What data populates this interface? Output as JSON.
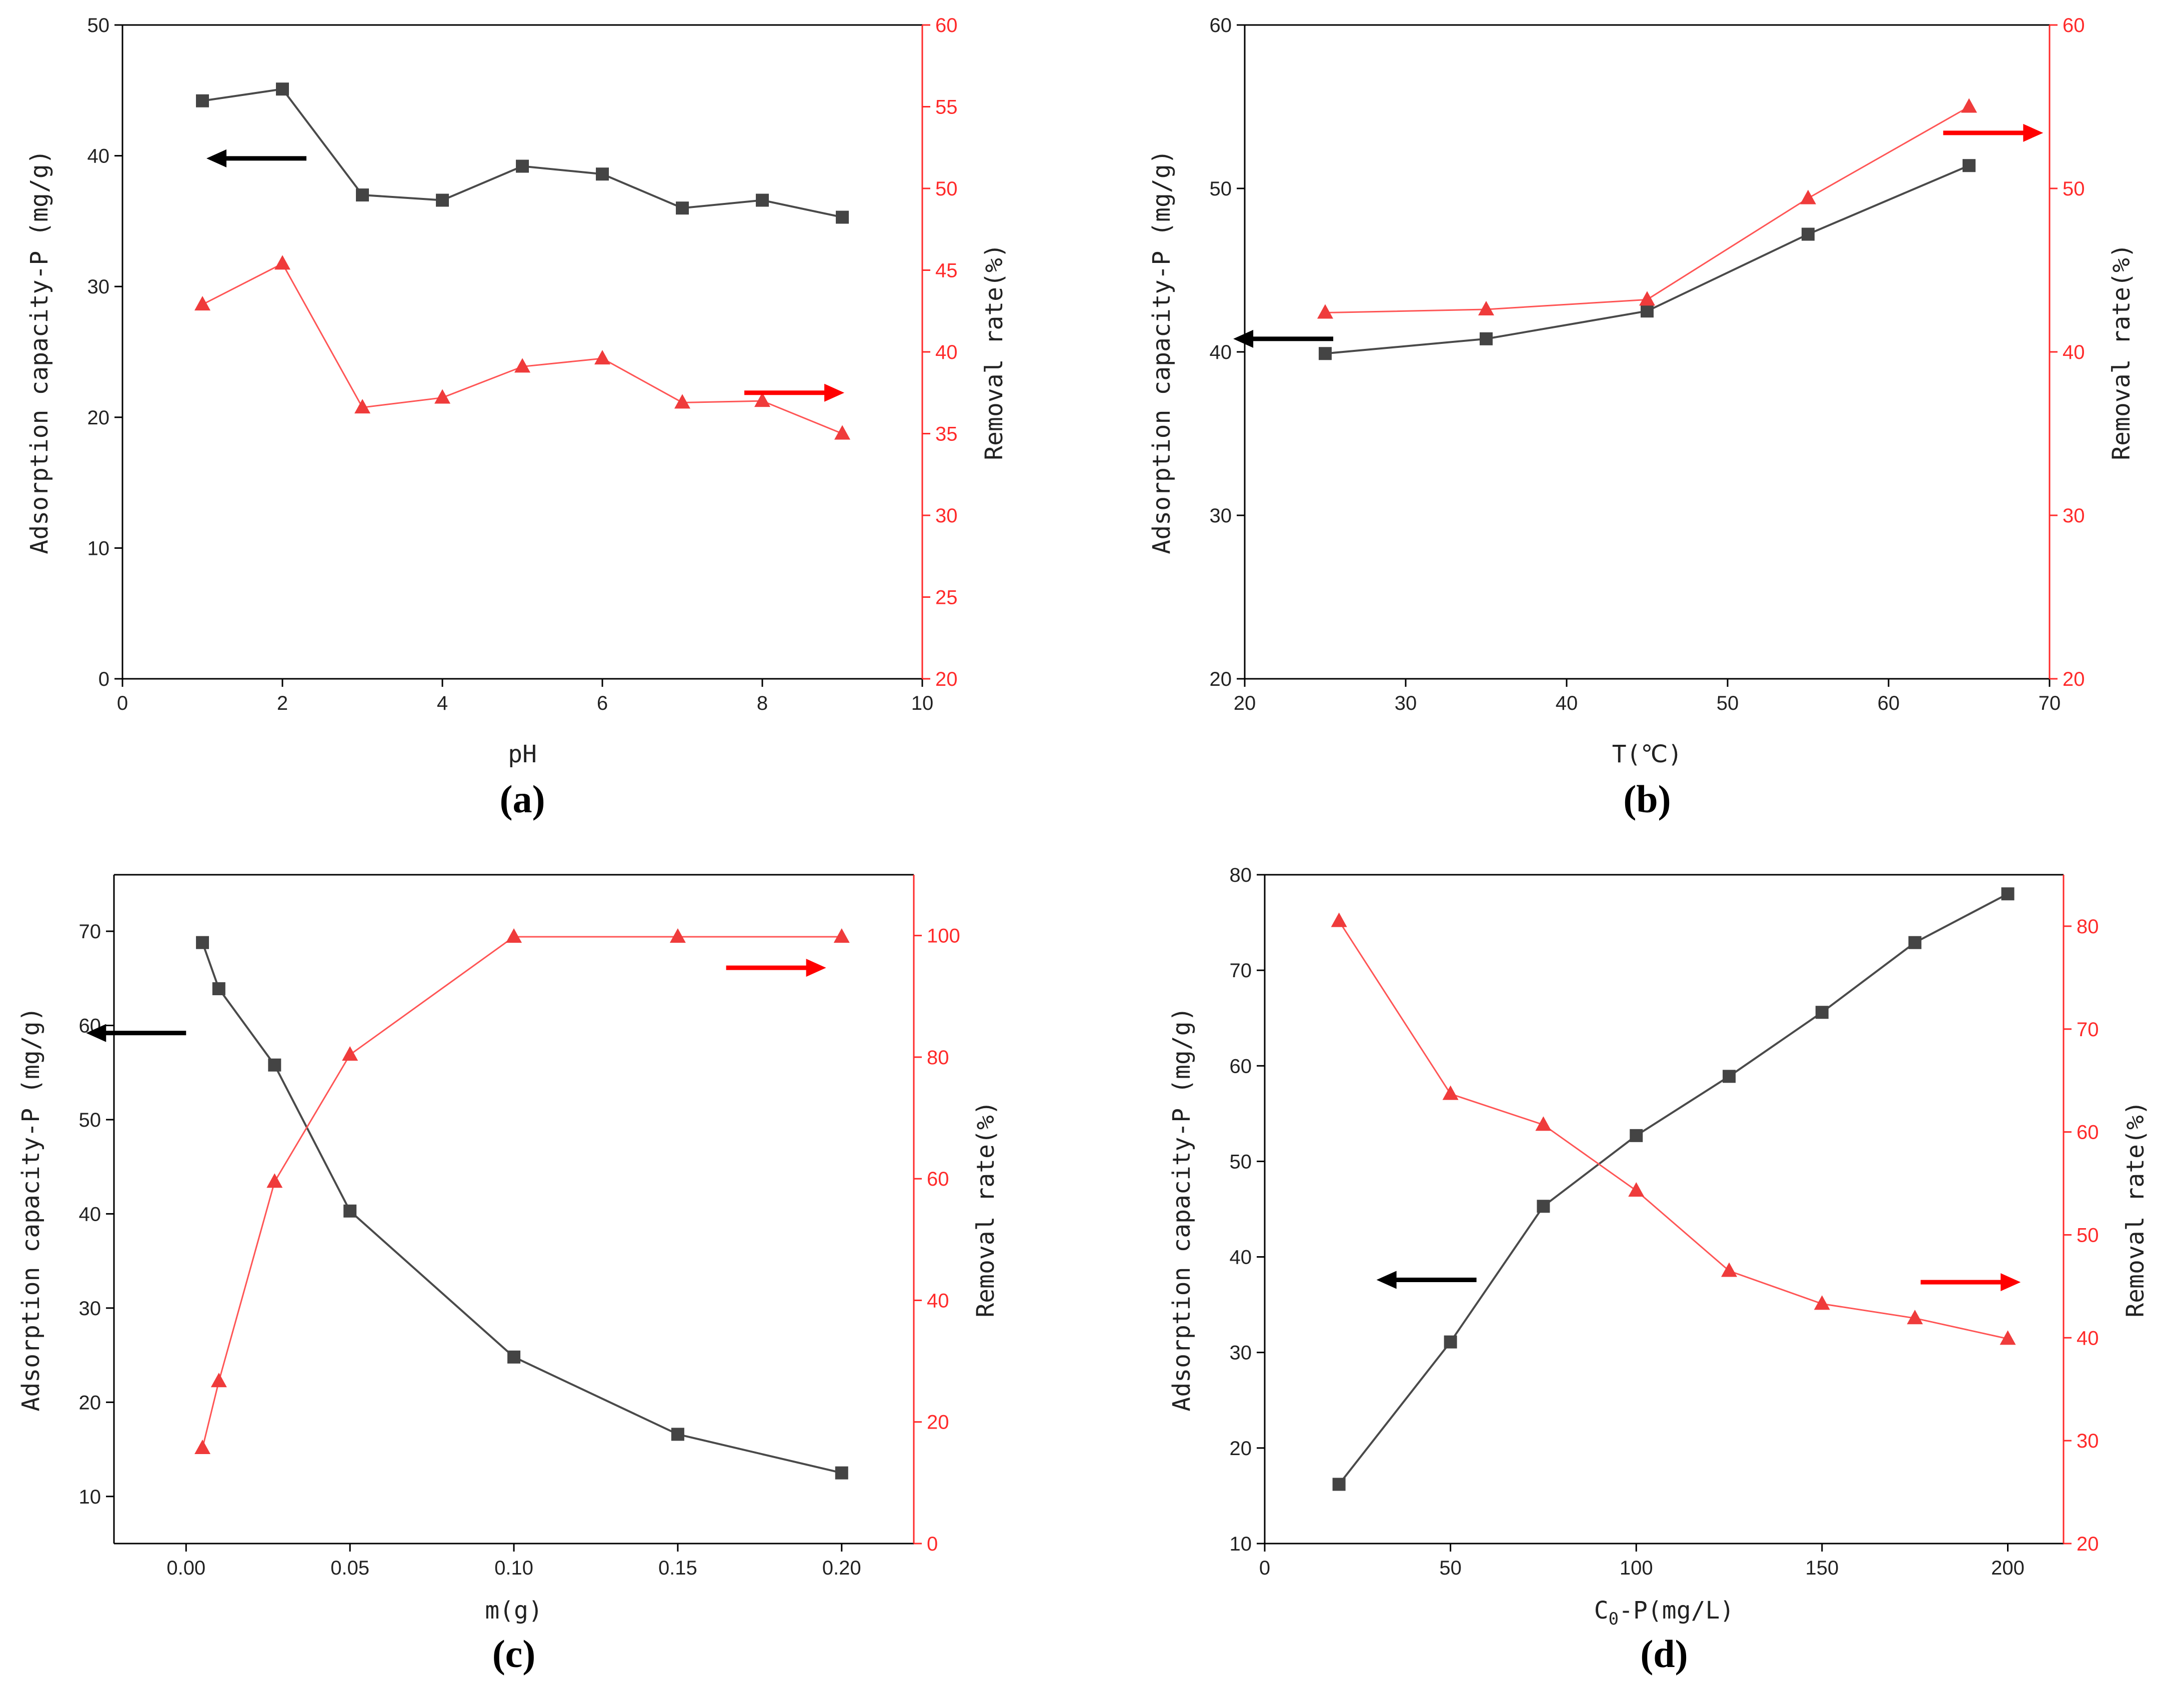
{
  "chart_data": [
    {
      "id": "a",
      "type": "line",
      "panel_label": "(a)",
      "xlabel": "pH",
      "ylabel_left": "Adsorption capacity-P (mg/g)",
      "ylabel_right": "Removal rate(%)",
      "xlim": [
        0,
        10
      ],
      "xticks": [
        0,
        2,
        4,
        6,
        8,
        10
      ],
      "ylim_left": [
        0,
        50
      ],
      "yticks_left": [
        0,
        10,
        20,
        30,
        40,
        50
      ],
      "ylim_right": [
        20,
        60
      ],
      "yticks_right": [
        20,
        25,
        30,
        35,
        40,
        45,
        50,
        55,
        60
      ],
      "x": [
        1,
        2,
        3,
        4,
        5,
        6,
        7,
        8,
        9
      ],
      "series": [
        {
          "name": "Adsorption capacity-P",
          "axis": "left",
          "marker": "square",
          "color": "#444444",
          "values": [
            44.2,
            45.1,
            37.0,
            36.6,
            39.2,
            38.6,
            36.0,
            36.6,
            35.3
          ]
        },
        {
          "name": "Removal rate",
          "axis": "right",
          "marker": "triangle",
          "color": "#ef3b3b",
          "values": [
            42.9,
            45.4,
            36.6,
            37.2,
            39.1,
            39.6,
            36.9,
            37.0,
            35.0
          ]
        }
      ],
      "arrows": [
        {
          "direction": "left",
          "color": "#000000",
          "anchor_x": 2.3,
          "anchor_y": 39.8,
          "axis": "left"
        },
        {
          "direction": "right",
          "color": "#ff0000",
          "anchor_x": 8.4,
          "anchor_y": 37.5,
          "axis": "right"
        }
      ]
    },
    {
      "id": "b",
      "type": "line",
      "panel_label": "(b)",
      "xlabel": "T(℃)",
      "ylabel_left": "Adsorption capacity-P (mg/g)",
      "ylabel_right": "Removal rate(%)",
      "xlim": [
        20,
        70
      ],
      "xticks": [
        20,
        30,
        40,
        50,
        60,
        70
      ],
      "ylim_left": [
        20,
        60
      ],
      "yticks_left": [
        20,
        30,
        40,
        50,
        60
      ],
      "ylim_right": [
        20,
        60
      ],
      "yticks_right": [
        20,
        30,
        40,
        50,
        60
      ],
      "x": [
        25,
        35,
        45,
        55,
        65
      ],
      "series": [
        {
          "name": "Adsorption capacity-P",
          "axis": "left",
          "marker": "square",
          "color": "#444444",
          "values": [
            39.9,
            40.8,
            42.5,
            47.2,
            51.4
          ]
        },
        {
          "name": "Removal rate",
          "axis": "right",
          "marker": "triangle",
          "color": "#ef3b3b",
          "values": [
            42.4,
            42.6,
            43.2,
            49.4,
            55.0
          ]
        }
      ],
      "arrows": [
        {
          "direction": "left",
          "color": "#000000",
          "anchor_x": 25.5,
          "anchor_y": 40.8,
          "axis": "left"
        },
        {
          "direction": "right",
          "color": "#ff0000",
          "anchor_x": 66.5,
          "anchor_y": 53.4,
          "axis": "right"
        }
      ]
    },
    {
      "id": "c",
      "type": "line",
      "panel_label": "(c)",
      "xlabel": "m(g)",
      "ylabel_left": "Adsorption capacity-P (mg/g)",
      "ylabel_right": "Removal rate(%)",
      "xlim": [
        -0.022,
        0.222
      ],
      "xticks": [
        0.0,
        0.05,
        0.1,
        0.15,
        0.2
      ],
      "xtick_labels": [
        "0.00",
        "0.05",
        "0.10",
        "0.15",
        "0.20"
      ],
      "ylim_left": [
        5,
        76
      ],
      "yticks_left": [
        10,
        20,
        30,
        40,
        50,
        60,
        70
      ],
      "ylim_right": [
        0,
        110
      ],
      "yticks_right": [
        0,
        20,
        40,
        60,
        80,
        100
      ],
      "x": [
        0.005,
        0.01,
        0.027,
        0.05,
        0.1,
        0.15,
        0.2
      ],
      "series": [
        {
          "name": "Adsorption capacity-P",
          "axis": "left",
          "marker": "square",
          "color": "#444444",
          "values": [
            68.8,
            63.9,
            55.8,
            40.3,
            24.8,
            16.6,
            12.5
          ]
        },
        {
          "name": "Removal rate",
          "axis": "right",
          "marker": "triangle",
          "color": "#ef3b3b",
          "values": [
            15.7,
            26.7,
            59.5,
            80.4,
            99.8,
            99.8,
            99.8
          ]
        }
      ],
      "arrows": [
        {
          "direction": "left",
          "color": "#000000",
          "anchor_x": 0.0,
          "anchor_y": 59.2,
          "axis": "left"
        },
        {
          "direction": "right",
          "color": "#ff0000",
          "anchor_x": 0.18,
          "anchor_y": 94.7,
          "axis": "right"
        }
      ]
    },
    {
      "id": "d",
      "type": "line",
      "panel_label": "(d)",
      "xlabel": "C0-P(mg/L)",
      "xlabel_main": "C",
      "xlabel_sub": "0",
      "xlabel_rest": "-P(mg/L)",
      "ylabel_left": "Adsorption capacity-P (mg/g)",
      "ylabel_right": "Removal rate(%)",
      "xlim": [
        0,
        215
      ],
      "xticks": [
        0,
        50,
        100,
        150,
        200
      ],
      "ylim_left": [
        10,
        80
      ],
      "yticks_left": [
        10,
        20,
        30,
        40,
        50,
        60,
        70,
        80
      ],
      "ylim_right": [
        20,
        85
      ],
      "yticks_right": [
        20,
        30,
        40,
        50,
        60,
        70,
        80
      ],
      "x": [
        20,
        50,
        75,
        100,
        125,
        150,
        175,
        200
      ],
      "series": [
        {
          "name": "Adsorption capacity-P",
          "axis": "left",
          "marker": "square",
          "color": "#444444",
          "values": [
            16.2,
            31.1,
            45.3,
            52.7,
            58.9,
            65.6,
            72.9,
            78.0
          ]
        },
        {
          "name": "Removal rate",
          "axis": "right",
          "marker": "triangle",
          "color": "#ef3b3b",
          "values": [
            80.5,
            63.7,
            60.7,
            54.3,
            46.5,
            43.3,
            41.9,
            39.9
          ]
        }
      ],
      "arrows": [
        {
          "direction": "left",
          "color": "#000000",
          "anchor_x": 57,
          "anchor_y": 37.6,
          "axis": "left"
        },
        {
          "direction": "right",
          "color": "#ff0000",
          "anchor_x": 190,
          "anchor_y": 45.4,
          "axis": "right"
        }
      ]
    }
  ]
}
